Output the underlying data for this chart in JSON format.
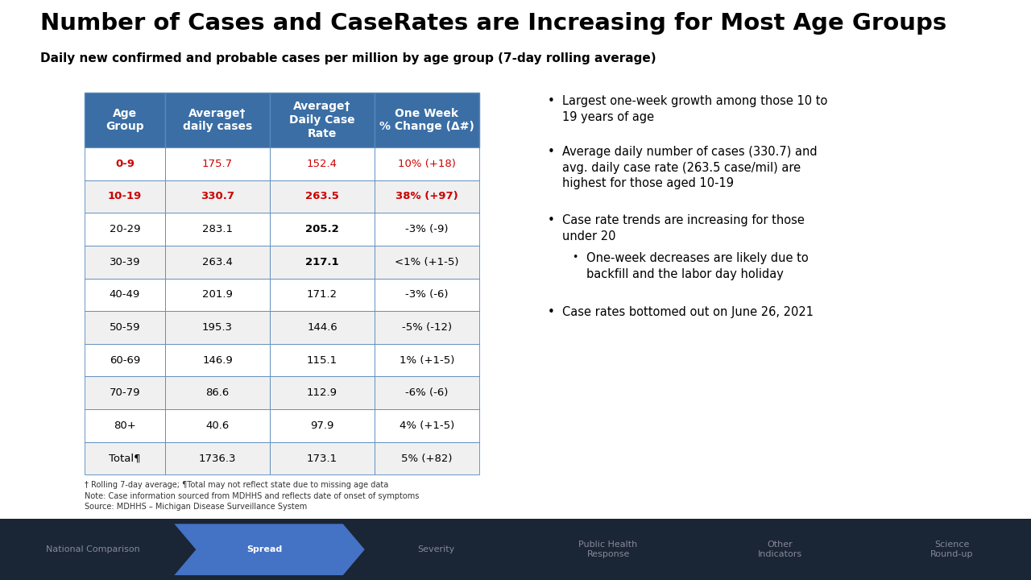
{
  "title": "Number of Cases and CaseRates are Increasing for Most Age Groups",
  "subtitle": "Daily new confirmed and probable cases per million by age group (7-day rolling average)",
  "table_headers": [
    "Age\nGroup",
    "Average†\ndaily cases",
    "Average†\nDaily Case\nRate",
    "One Week\n% Change (Δ#)"
  ],
  "table_rows": [
    [
      "0-9",
      "175.7",
      "152.4",
      "10% (+18)"
    ],
    [
      "10-19",
      "330.7",
      "263.5",
      "38% (+97)"
    ],
    [
      "20-29",
      "283.1",
      "205.2",
      "-3% (-9)"
    ],
    [
      "30-39",
      "263.4",
      "217.1",
      "<1% (+1-5)"
    ],
    [
      "40-49",
      "201.9",
      "171.2",
      "-3% (-6)"
    ],
    [
      "50-59",
      "195.3",
      "144.6",
      "-5% (-12)"
    ],
    [
      "60-69",
      "146.9",
      "115.1",
      "1% (+1-5)"
    ],
    [
      "70-79",
      "86.6",
      "112.9",
      "-6% (-6)"
    ],
    [
      "80+",
      "40.6",
      "97.9",
      "4% (+1-5)"
    ],
    [
      "Total¶",
      "1736.3",
      "173.1",
      "5% (+82)"
    ]
  ],
  "red_rows": [
    0,
    1
  ],
  "bold_col2_rows": [
    2,
    3
  ],
  "header_bg": "#3a6ea5",
  "header_text": "#ffffff",
  "row_bg_even": "#ffffff",
  "row_bg_odd": "#f0f0f0",
  "red_color": "#cc0000",
  "border_color": "#5588bb",
  "bullet_points": [
    "Largest one-week growth among those 10 to\n19 years of age",
    "Average daily number of cases (330.7) and\navg. daily case rate (263.5 case/mil) are\nhighest for those aged 10-19",
    "Case rate trends are increasing for those\nunder 20",
    "One-week decreases are likely due to\nbackfill and the labor day holiday",
    "Case rates bottomed out on June 26, 2021"
  ],
  "bullet_indent": [
    0,
    0,
    0,
    1,
    0
  ],
  "footnote": "† Rolling 7-day average; ¶Total may not reflect state due to missing age data\nNote: Case information sourced from MDHHS and reflects date of onset of symptoms\nSource: MDHHS – Michigan Disease Surveillance System",
  "nav_items": [
    "National Comparison",
    "Spread",
    "Severity",
    "Public Health\nResponse",
    "Other\nIndicators",
    "Science\nRound-up"
  ],
  "nav_active": 1,
  "nav_bg": "#1a2535",
  "nav_active_color": "#4472c4",
  "nav_text_color": "#888899",
  "nav_active_text_color": "#ffffff",
  "bg_color": "#ffffff"
}
